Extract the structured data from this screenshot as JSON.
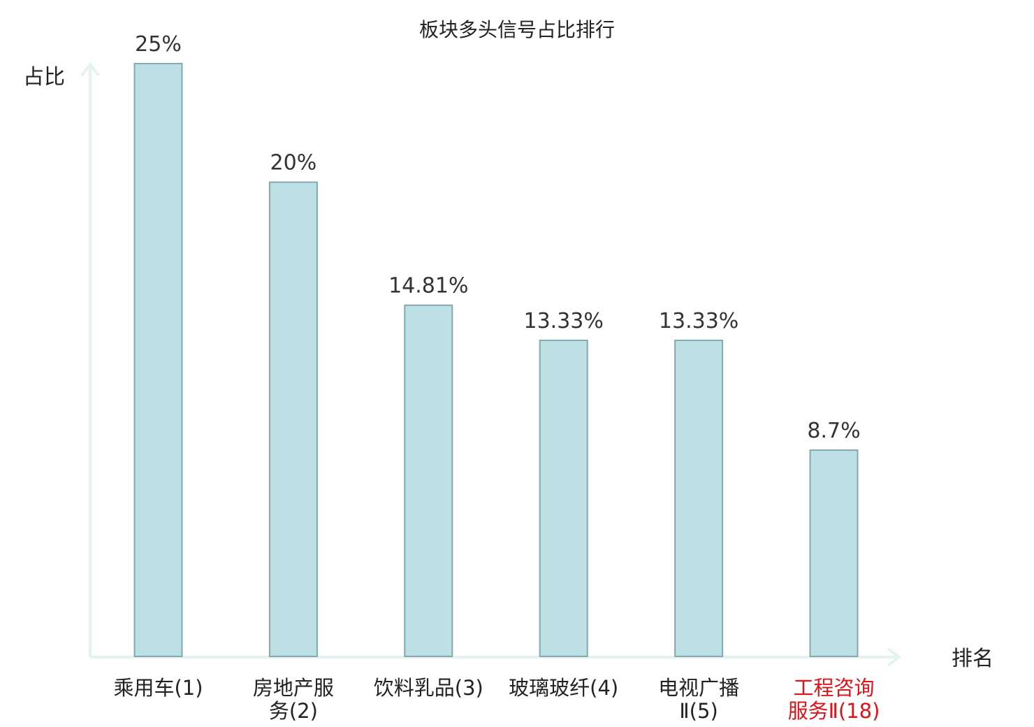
{
  "chart_data": {
    "type": "bar",
    "title": "板块多头信号占比排行",
    "xlabel": "排名",
    "ylabel": "占比",
    "ylim": [
      0,
      25
    ],
    "grid": false,
    "categories": [
      [
        "乘用车(1)"
      ],
      [
        "房地产服",
        "务(2)"
      ],
      [
        "饮料乳品(3)"
      ],
      [
        "玻璃玻纤(4)"
      ],
      [
        "电视广播",
        "Ⅱ(5)"
      ],
      [
        "工程咨询",
        "服务Ⅱ(18)"
      ]
    ],
    "values": [
      25,
      20,
      14.81,
      13.33,
      13.33,
      8.7
    ],
    "value_labels": [
      "25%",
      "20%",
      "14.81%",
      "13.33%",
      "13.33%",
      "8.7%"
    ],
    "highlight_index": 5
  },
  "colors": {
    "bar_fill": "#bce0e3",
    "bar_stroke": "#84a8ab",
    "axis": "#e3f3f1",
    "text": "#222222",
    "highlight_text": "#e0121a"
  }
}
